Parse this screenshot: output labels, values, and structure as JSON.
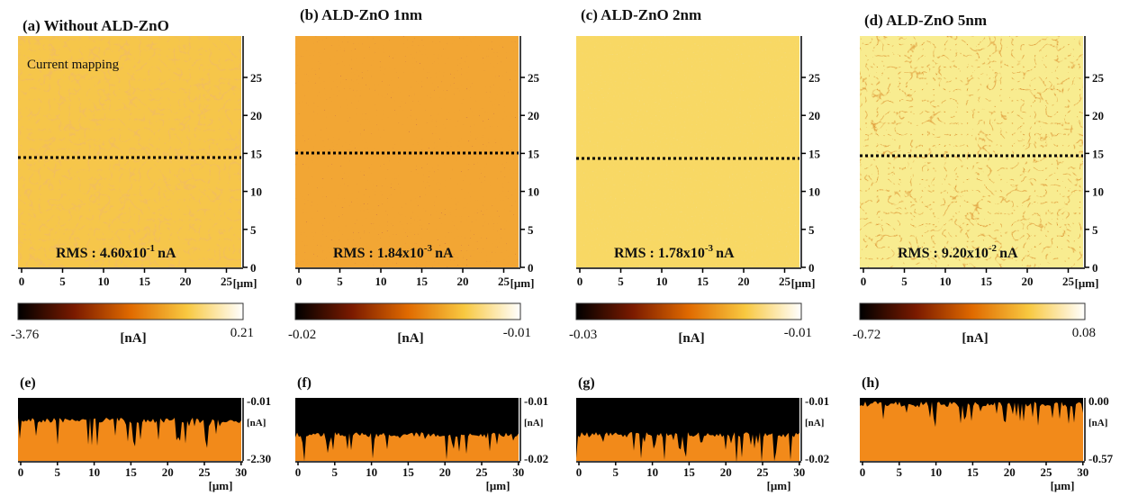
{
  "panels": [
    {
      "title": "(a) Without ALD-ZnO",
      "overlay": "Current mapping",
      "rms": {
        "text": "RMS : 4.60x10",
        "exp": "-1",
        "unit": "nA"
      },
      "yticks": [
        0,
        5,
        10,
        15,
        20,
        25
      ],
      "xticks": [
        0,
        5,
        10,
        15,
        20,
        25
      ],
      "xunit": "[μm]",
      "colorbar": {
        "min": "-3.76",
        "unit": "[nA]",
        "max": "0.21"
      },
      "profile": {
        "label": "(e)",
        "top": "-0.01",
        "unit": "[nA]",
        "bottom": "-2.30",
        "xticks": [
          0,
          5,
          10,
          15,
          20,
          25,
          30
        ],
        "xunit": "[μm]"
      }
    },
    {
      "title": "(b) ALD-ZnO 1nm",
      "rms": {
        "text": "RMS : 1.84x10",
        "exp": "-3",
        "unit": "nA"
      },
      "yticks": [
        0,
        5,
        10,
        15,
        20,
        25
      ],
      "xticks": [
        0,
        5,
        10,
        15,
        20,
        25
      ],
      "xunit": "[μm]",
      "colorbar": {
        "min": "-0.02",
        "unit": "[nA]",
        "max": "-0.01"
      },
      "profile": {
        "label": "(f)",
        "top": "-0.01",
        "unit": "[nA]",
        "bottom": "-0.02",
        "xticks": [
          0,
          5,
          10,
          15,
          20,
          25,
          30
        ],
        "xunit": "[μm]"
      }
    },
    {
      "title": "(c) ALD-ZnO 2nm",
      "rms": {
        "text": "RMS : 1.78x10",
        "exp": "-3",
        "unit": "nA"
      },
      "yticks": [
        0,
        5,
        10,
        15,
        20,
        25
      ],
      "xticks": [
        0,
        5,
        10,
        15,
        20,
        25
      ],
      "xunit": "[μm]",
      "colorbar": {
        "min": "-0.03",
        "unit": "[nA]",
        "max": "-0.01"
      },
      "profile": {
        "label": "(g)",
        "top": "-0.01",
        "unit": "[nA]",
        "bottom": "-0.02",
        "xticks": [
          0,
          5,
          10,
          15,
          20,
          25,
          30
        ],
        "xunit": "[μm]"
      }
    },
    {
      "title": "(d) ALD-ZnO 5nm",
      "rms": {
        "text": "RMS : 9.20x10",
        "exp": "-2",
        "unit": "nA"
      },
      "yticks": [
        0,
        5,
        10,
        15,
        20,
        25
      ],
      "xticks": [
        0,
        5,
        10,
        15,
        20,
        25
      ],
      "xunit": "[μm]",
      "colorbar": {
        "min": "-0.72",
        "unit": "[nA]",
        "max": "0.08"
      },
      "profile": {
        "label": "(h)",
        "top": "0.00",
        "unit": "[nA]",
        "bottom": "-0.57",
        "xticks": [
          0,
          5,
          10,
          15,
          20,
          25,
          30
        ],
        "xunit": "[μm]"
      }
    }
  ]
}
